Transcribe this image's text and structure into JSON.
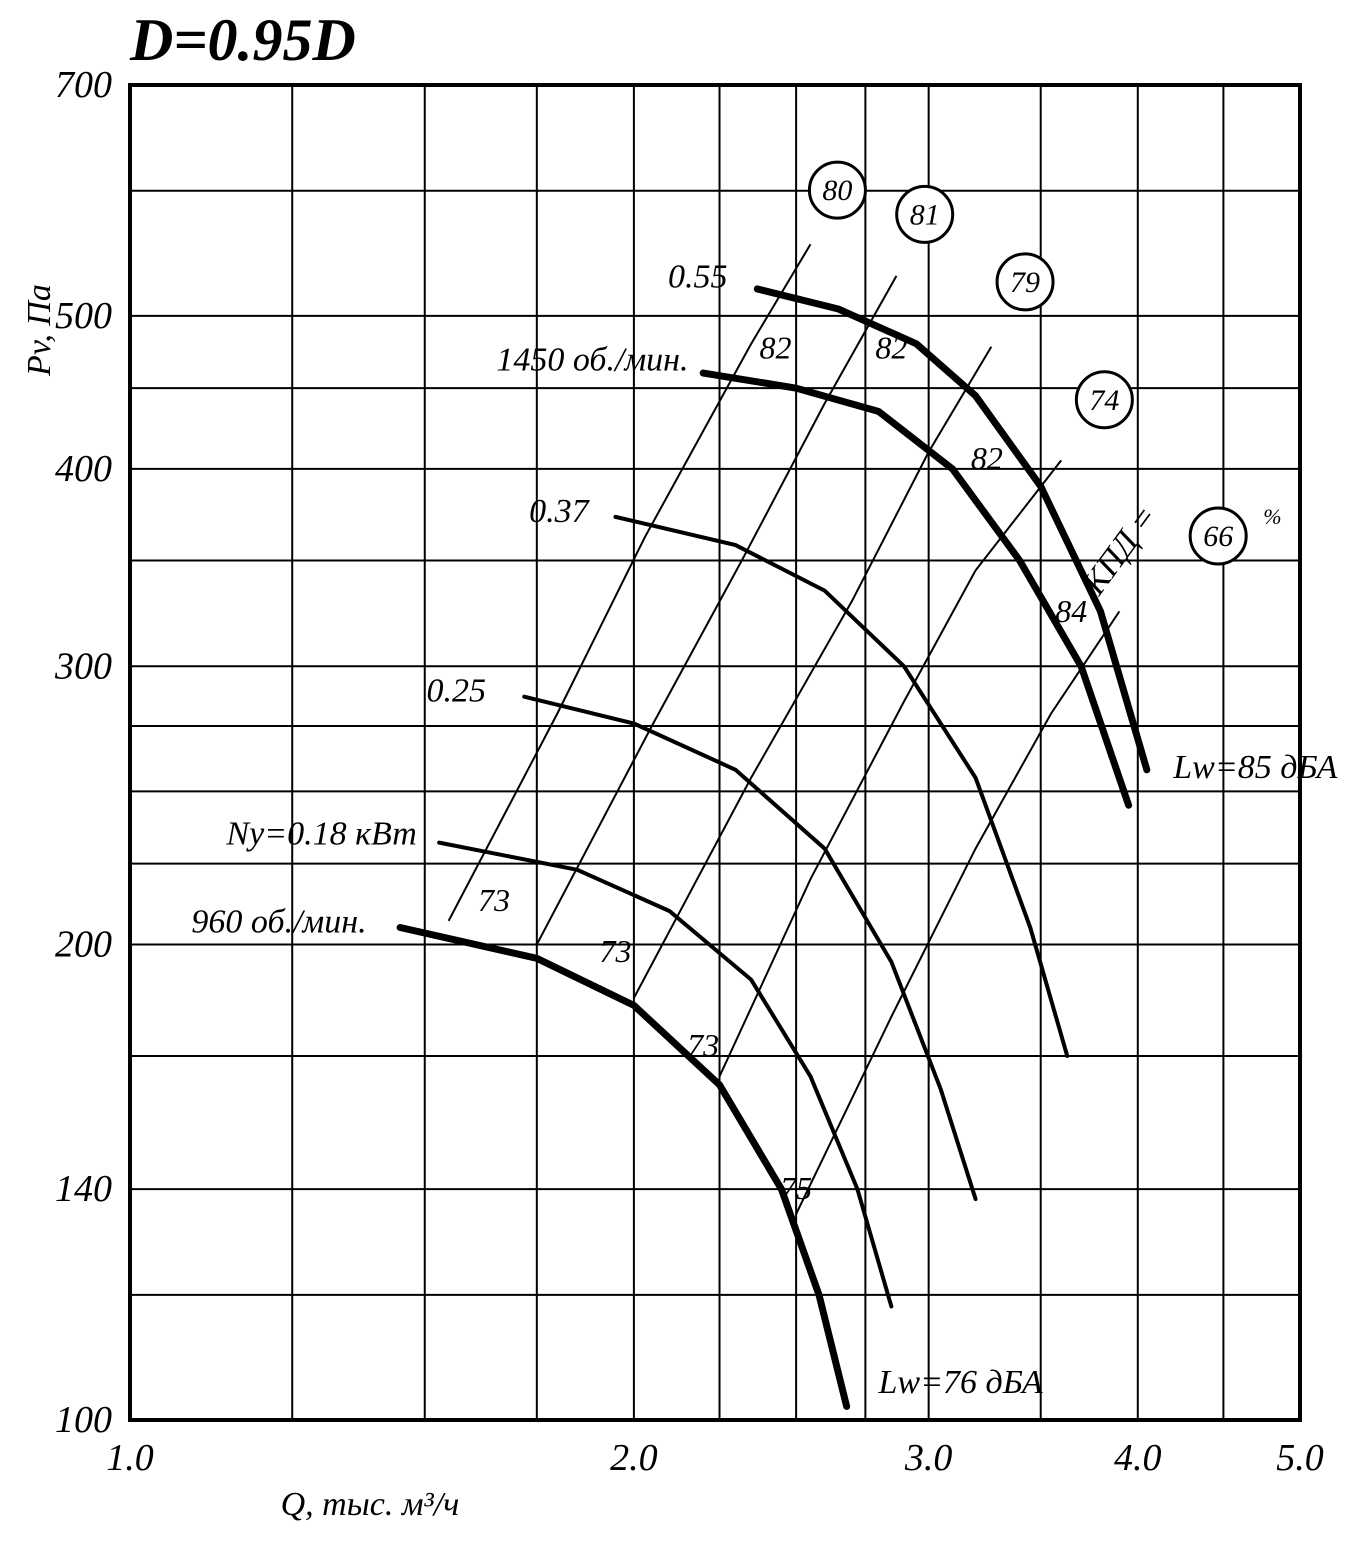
{
  "title": "D=0.95D",
  "title_fontsize": 60,
  "background_color": "#ffffff",
  "axis_color": "#000000",
  "grid_color": "#000000",
  "grid_stroke": 2,
  "thin_stroke": 2,
  "medium_stroke": 4,
  "heavy_stroke": 7,
  "tick_fontsize": 38,
  "label_fontsize": 34,
  "annotation_fontsize": 34,
  "circle_fontsize": 30,
  "circle_radius": 28,
  "circle_stroke": 3,
  "x_axis": {
    "label": "Q, тыс. м³/ч",
    "min": 1.0,
    "max": 5.0,
    "log": true,
    "ticks": [
      1.0,
      2.0,
      3.0,
      4.0,
      5.0
    ],
    "tick_labels": [
      "1.0",
      "2.0",
      "3.0",
      "4.0",
      "5.0"
    ],
    "fine_ticks": [
      1.0,
      1.25,
      1.5,
      1.75,
      2.0,
      2.25,
      2.5,
      2.75,
      3.0,
      3.5,
      4.0,
      4.5,
      5.0
    ]
  },
  "y_axis": {
    "label": "Pv, Па",
    "min": 100,
    "max": 700,
    "log": true,
    "ticks": [
      100,
      140,
      200,
      300,
      400,
      500,
      700
    ],
    "tick_labels": [
      "100",
      "140",
      "200",
      "300",
      "400",
      "500",
      "700"
    ],
    "fine_ticks": [
      100,
      120,
      140,
      170,
      200,
      225,
      250,
      275,
      300,
      350,
      400,
      450,
      500,
      600,
      700
    ]
  },
  "efficiency_lines": [
    {
      "label": "80",
      "circle": true,
      "end": [
        2.55,
        560
      ],
      "pts": [
        [
          1.55,
          207
        ],
        [
          1.8,
          280
        ],
        [
          2.03,
          362
        ],
        [
          2.35,
          480
        ],
        [
          2.55,
          555
        ]
      ]
    },
    {
      "label": "81",
      "circle": true,
      "end": [
        2.88,
        540
      ],
      "pts": [
        [
          1.75,
          200
        ],
        [
          2.05,
          275
        ],
        [
          2.32,
          350
        ],
        [
          2.6,
          440
        ],
        [
          2.87,
          530
        ]
      ]
    },
    {
      "label": "79",
      "circle": true,
      "end": [
        3.3,
        490
      ],
      "pts": [
        [
          2.0,
          185
        ],
        [
          2.35,
          255
        ],
        [
          2.7,
          330
        ],
        [
          3.0,
          410
        ],
        [
          3.27,
          478
        ]
      ]
    },
    {
      "label": "74",
      "circle": true,
      "end": [
        3.65,
        415
      ],
      "pts": [
        [
          2.25,
          165
        ],
        [
          2.55,
          220
        ],
        [
          2.9,
          285
        ],
        [
          3.2,
          345
        ],
        [
          3.6,
          405
        ]
      ]
    },
    {
      "label": "66",
      "circle": true,
      "end": [
        4.1,
        345
      ],
      "kpd": true,
      "pts": [
        [
          2.5,
          135
        ],
        [
          2.85,
          180
        ],
        [
          3.2,
          230
        ],
        [
          3.55,
          280
        ],
        [
          3.9,
          325
        ]
      ]
    }
  ],
  "kpd_label": "КПД =",
  "kpd_percent": "%",
  "rpm_curves": [
    {
      "label": "1450 об./мин.",
      "heavy": true,
      "lbl_at": [
        2.18,
        465
      ],
      "pts": [
        [
          2.2,
          460
        ],
        [
          2.5,
          450
        ],
        [
          2.8,
          435
        ],
        [
          3.1,
          400
        ],
        [
          3.4,
          350
        ],
        [
          3.7,
          300
        ],
        [
          3.95,
          245
        ]
      ]
    },
    {
      "label": "0.55",
      "heavy": true,
      "lbl_at": [
        2.3,
        525
      ],
      "pts": [
        [
          2.37,
          520
        ],
        [
          2.65,
          505
        ],
        [
          2.95,
          480
        ],
        [
          3.2,
          445
        ],
        [
          3.5,
          390
        ],
        [
          3.8,
          325
        ],
        [
          4.05,
          258
        ]
      ]
    },
    {
      "label": "0.37",
      "heavy": false,
      "lbl_at": [
        1.9,
        373
      ],
      "pts": [
        [
          1.95,
          373
        ],
        [
          2.3,
          358
        ],
        [
          2.6,
          335
        ],
        [
          2.9,
          300
        ],
        [
          3.2,
          255
        ],
        [
          3.45,
          205
        ],
        [
          3.63,
          170
        ]
      ]
    },
    {
      "label": "0.25",
      "heavy": false,
      "lbl_at": [
        1.65,
        287
      ],
      "pts": [
        [
          1.72,
          287
        ],
        [
          2.0,
          276
        ],
        [
          2.3,
          258
        ],
        [
          2.6,
          230
        ],
        [
          2.85,
          195
        ],
        [
          3.05,
          162
        ],
        [
          3.2,
          138
        ]
      ]
    },
    {
      "label": "Nу=0.18 кВт",
      "heavy": false,
      "lbl_at": [
        1.5,
        233
      ],
      "pts": [
        [
          1.53,
          232
        ],
        [
          1.85,
          223
        ],
        [
          2.1,
          210
        ],
        [
          2.35,
          190
        ],
        [
          2.55,
          165
        ],
        [
          2.72,
          140
        ],
        [
          2.85,
          118
        ]
      ]
    },
    {
      "label": "960 об./мин.",
      "heavy": true,
      "lbl_at": [
        1.4,
        205
      ],
      "pts": [
        [
          1.45,
          205
        ],
        [
          1.75,
          196
        ],
        [
          2.0,
          183
        ],
        [
          2.25,
          163
        ],
        [
          2.45,
          140
        ],
        [
          2.58,
          120
        ],
        [
          2.68,
          102
        ]
      ]
    }
  ],
  "side_labels": [
    {
      "text": "Lw=85 дБА",
      "at": [
        4.2,
        255
      ]
    },
    {
      "text": "Lw=76 дБА",
      "at": [
        2.8,
        104
      ]
    }
  ],
  "inline_numbers": [
    {
      "text": "82",
      "at": [
        2.43,
        470
      ]
    },
    {
      "text": "82",
      "at": [
        2.85,
        470
      ]
    },
    {
      "text": "82",
      "at": [
        3.25,
        400
      ]
    },
    {
      "text": "84",
      "at": [
        3.65,
        320
      ]
    },
    {
      "text": "73",
      "at": [
        1.65,
        210
      ]
    },
    {
      "text": "73",
      "at": [
        1.95,
        195
      ]
    },
    {
      "text": "73",
      "at": [
        2.2,
        170
      ]
    },
    {
      "text": "75",
      "at": [
        2.5,
        138
      ]
    }
  ]
}
